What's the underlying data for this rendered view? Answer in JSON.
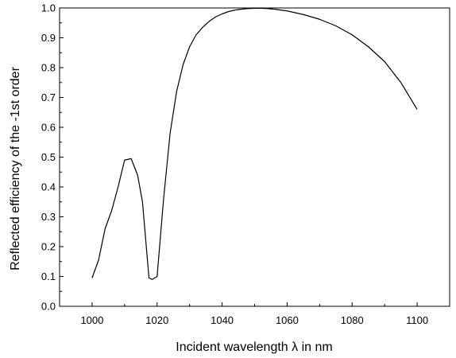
{
  "chart_data": {
    "type": "line",
    "xlabel": "Incident wavelength λ in nm",
    "ylabel": "Reflected efficiency of the -1st order",
    "xlim": [
      990,
      1110
    ],
    "ylim": [
      0.0,
      1.0
    ],
    "x_ticks": [
      1000,
      1020,
      1040,
      1060,
      1080,
      1100
    ],
    "y_ticks": [
      "0.0",
      "0.1",
      "0.2",
      "0.3",
      "0.4",
      "0.5",
      "0.6",
      "0.7",
      "0.8",
      "0.9",
      "1.0"
    ],
    "grid": false,
    "series": [
      {
        "color": "#000000",
        "x": [
          1000,
          1002,
          1004,
          1006,
          1008,
          1010,
          1012,
          1014,
          1015.5,
          1017.5,
          1018.5,
          1020,
          1022,
          1024,
          1026,
          1028,
          1030,
          1032,
          1034,
          1036,
          1038,
          1040,
          1042,
          1044,
          1046,
          1048,
          1050,
          1052,
          1054,
          1056,
          1058,
          1060,
          1065,
          1070,
          1075,
          1080,
          1085,
          1090,
          1095,
          1100
        ],
        "y": [
          0.095,
          0.155,
          0.26,
          0.32,
          0.4,
          0.49,
          0.495,
          0.44,
          0.35,
          0.095,
          0.09,
          0.1,
          0.36,
          0.58,
          0.72,
          0.81,
          0.87,
          0.91,
          0.935,
          0.955,
          0.97,
          0.98,
          0.988,
          0.993,
          0.996,
          0.998,
          0.999,
          0.999,
          0.998,
          0.996,
          0.993,
          0.99,
          0.978,
          0.962,
          0.94,
          0.91,
          0.87,
          0.82,
          0.75,
          0.66
        ]
      }
    ]
  }
}
